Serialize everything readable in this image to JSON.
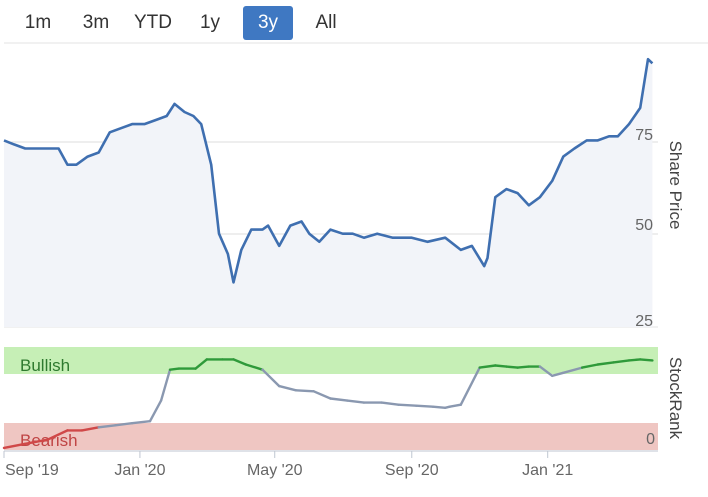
{
  "range_selector": {
    "buttons": [
      {
        "label": "1m",
        "active": false
      },
      {
        "label": "3m",
        "active": false
      },
      {
        "label": "YTD",
        "active": false
      },
      {
        "label": "1y",
        "active": false
      },
      {
        "label": "3y",
        "active": true
      },
      {
        "label": "All",
        "active": false
      }
    ]
  },
  "colors": {
    "price_line": "#3f6fb0",
    "price_fill": "#f2f4f9",
    "bullish_zone": "#c6efb6",
    "bearish_zone": "#efc6c2",
    "bullish_line": "#2f9a3a",
    "neutral_line": "#8a98b0",
    "bearish_line": "#d04848",
    "active_button": "#3f78c2"
  },
  "chart_data": [
    {
      "type": "line",
      "ylabel": "Share Price",
      "y_ticks": [
        "25",
        "50",
        "75"
      ],
      "ylim": [
        22,
        92
      ],
      "x_ticks": [
        "Sep '19",
        "Jan '20",
        "May '20",
        "Sep '20",
        "Jan '21"
      ],
      "series": [
        {
          "x": [
            "2019-09-01",
            "2019-09-10",
            "2019-09-20",
            "2019-10-01",
            "2019-10-10",
            "2019-10-20",
            "2019-10-28",
            "2019-11-05",
            "2019-11-15",
            "2019-11-25",
            "2019-12-05",
            "2019-12-15",
            "2019-12-25",
            "2020-01-05",
            "2020-01-15",
            "2020-01-25",
            "2020-02-01",
            "2020-02-10",
            "2020-02-18",
            "2020-02-25",
            "2020-03-05",
            "2020-03-12",
            "2020-03-20",
            "2020-03-25",
            "2020-04-01",
            "2020-04-10",
            "2020-04-20",
            "2020-04-25",
            "2020-05-05",
            "2020-05-15",
            "2020-05-25",
            "2020-06-01",
            "2020-06-10",
            "2020-06-20",
            "2020-07-01",
            "2020-07-10",
            "2020-07-20",
            "2020-08-01",
            "2020-08-15",
            "2020-09-01",
            "2020-09-15",
            "2020-10-01",
            "2020-10-15",
            "2020-10-25",
            "2020-11-05",
            "2020-11-08",
            "2020-11-15",
            "2020-11-25",
            "2020-12-05",
            "2020-12-15",
            "2020-12-25",
            "2021-01-05",
            "2021-01-15",
            "2021-01-25",
            "2021-02-05",
            "2021-02-15",
            "2021-02-25",
            "2021-03-05",
            "2021-03-15",
            "2021-03-25",
            "2021-04-01",
            "2021-04-05"
          ],
          "values": [
            68,
            67,
            66,
            66,
            66,
            66,
            62,
            62,
            64,
            65,
            70,
            71,
            72,
            72,
            73,
            74,
            77,
            75,
            74,
            72,
            62,
            45,
            40,
            33,
            41,
            46,
            46,
            47,
            42,
            47,
            48,
            45,
            43,
            46,
            45,
            45,
            44,
            45,
            44,
            44,
            43,
            44,
            41,
            42,
            37,
            39,
            54,
            56,
            55,
            52,
            54,
            58,
            64,
            66,
            68,
            68,
            69,
            69,
            72,
            76,
            88,
            87
          ]
        }
      ]
    },
    {
      "type": "line",
      "ylabel": "StockRank",
      "y_ticks": [
        "0"
      ],
      "ylim": [
        0,
        100
      ],
      "x_ticks": [
        "Sep '19",
        "Jan '20",
        "May '20",
        "Sep '20",
        "Jan '21"
      ],
      "zones": [
        {
          "label": "Bullish",
          "from": 80,
          "to": 100
        },
        {
          "label": "Bearish",
          "from": 0,
          "to": 20
        }
      ],
      "series": [
        {
          "x": [
            "2019-09-01",
            "2019-09-20",
            "2019-10-10",
            "2019-10-28",
            "2019-11-10",
            "2019-11-25",
            "2019-12-10",
            "2019-12-25",
            "2020-01-10",
            "2020-01-20",
            "2020-01-28",
            "2020-02-05",
            "2020-02-20",
            "2020-03-01",
            "2020-03-15",
            "2020-03-25",
            "2020-04-05",
            "2020-04-20",
            "2020-05-05",
            "2020-05-20",
            "2020-06-05",
            "2020-06-20",
            "2020-07-05",
            "2020-07-20",
            "2020-08-05",
            "2020-08-20",
            "2020-09-05",
            "2020-09-20",
            "2020-10-01",
            "2020-10-05",
            "2020-10-15",
            "2020-11-01",
            "2020-11-15",
            "2020-11-25",
            "2020-12-05",
            "2020-12-15",
            "2020-12-25",
            "2021-01-05",
            "2021-01-15",
            "2021-02-01",
            "2021-02-15",
            "2021-03-01",
            "2021-03-15",
            "2021-03-25",
            "2021-04-05"
          ],
          "values": [
            2,
            6,
            10,
            19,
            19,
            22,
            24,
            26,
            28,
            48,
            78,
            79,
            79,
            88,
            88,
            88,
            83,
            78,
            62,
            58,
            57,
            50,
            48,
            46,
            46,
            44,
            43,
            42,
            41,
            42,
            44,
            80,
            82,
            81,
            80,
            81,
            81,
            72,
            75,
            80,
            83,
            85,
            87,
            88,
            87
          ]
        }
      ]
    }
  ]
}
